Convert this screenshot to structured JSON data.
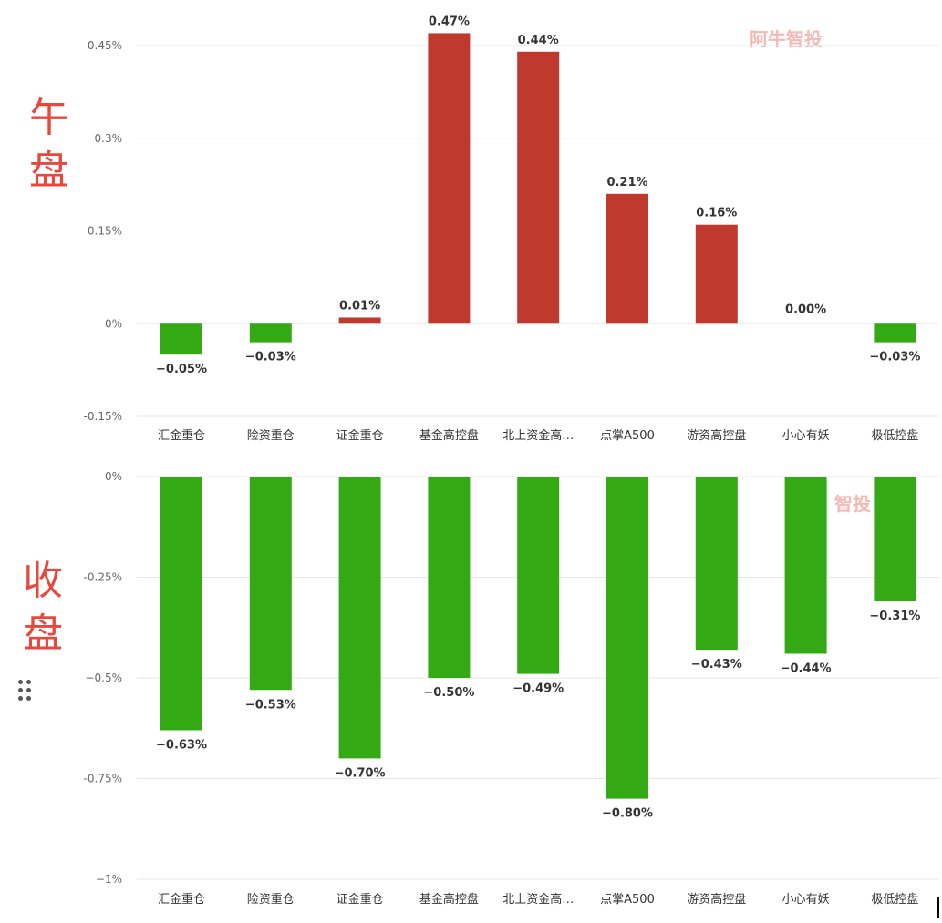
{
  "labels": {
    "top": "午盘",
    "bottom": "收盘"
  },
  "watermark": {
    "top": "阿牛智投",
    "bottom": "智投"
  },
  "colors": {
    "positive": "#c0392f",
    "negative": "#33aa14",
    "side_label": "#e8473e",
    "grid": "#e6e6e6"
  },
  "chart_data": [
    {
      "type": "bar",
      "categories": [
        "汇金重仓",
        "险资重仓",
        "证金重仓",
        "基金高控盘",
        "北上资金高…",
        "点掌A500",
        "游资高控盘",
        "小心有妖",
        "极低控盘"
      ],
      "values": [
        -0.05,
        -0.03,
        0.01,
        0.47,
        0.44,
        0.21,
        0.16,
        0.0,
        -0.03
      ],
      "value_labels": [
        "−0.05%",
        "−0.03%",
        "0.01%",
        "0.47%",
        "0.44%",
        "0.21%",
        "0.16%",
        "0.00%",
        "−0.03%"
      ],
      "yticks": [
        -0.15,
        0,
        0.15,
        0.3,
        0.45
      ],
      "ytick_labels": [
        "-0.15%",
        "0%",
        "0.15%",
        "0.3%",
        "0.45%"
      ],
      "ylim": [
        -0.15,
        0.45
      ],
      "grid": true
    },
    {
      "type": "bar",
      "categories": [
        "汇金重仓",
        "险资重仓",
        "证金重仓",
        "基金高控盘",
        "北上资金高…",
        "点掌A500",
        "游资高控盘",
        "小心有妖",
        "极低控盘"
      ],
      "values": [
        -0.63,
        -0.53,
        -0.7,
        -0.5,
        -0.49,
        -0.8,
        -0.43,
        -0.44,
        -0.31
      ],
      "value_labels": [
        "−0.63%",
        "−0.53%",
        "−0.70%",
        "−0.50%",
        "−0.49%",
        "−0.80%",
        "−0.43%",
        "−0.44%",
        "−0.31%"
      ],
      "yticks": [
        0,
        -0.25,
        -0.5,
        -0.75,
        -1
      ],
      "ytick_labels": [
        "0%",
        "-0.25%",
        "−0.5%",
        "-0.75%",
        "−1%"
      ],
      "ylim": [
        -1,
        0
      ],
      "grid": true
    }
  ]
}
